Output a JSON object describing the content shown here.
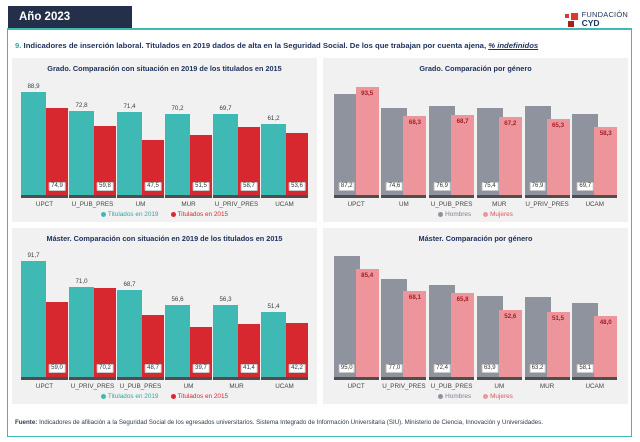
{
  "header": {
    "year_label": "Año 2023",
    "logo_line1": "FUNDACIÓN",
    "logo_line2": "CYD"
  },
  "page_title": {
    "number": "9.",
    "text": " Indicadores de inserción laboral. Titulados en 2019 dados de alta en la Seguridad Social. De los que trabajan por cuenta ajena, ",
    "emphasis": "% indefinidos"
  },
  "colors": {
    "accent_teal": "#3fb9b3",
    "bar_teal": "#3fb9b3",
    "bar_red": "#d7282f",
    "bar_gray": "#8e939d",
    "bar_pink": "#ee959c",
    "navy": "#21325b",
    "panel_bg": "#f1f1f2",
    "header_bg": "#243049"
  },
  "chart_data": [
    {
      "type": "bar",
      "variant": "cohort",
      "title": "Grado. Comparación con situación en 2019 de los titulados en 2015",
      "categories": [
        "UPCT",
        "U_PUB_PRES",
        "UM",
        "MUR",
        "U_PRIV_PRES",
        "UCAM"
      ],
      "ylim": [
        0,
        100
      ],
      "legend_position": "bottom",
      "series": [
        {
          "name": "Titulados en 2019",
          "color": "#3fb9b3",
          "legend_text_color": "#2fa9a3",
          "label_style": "above",
          "label_color": "#3f3f3f",
          "values": [
            88.9,
            72.8,
            71.4,
            70.2,
            69.7,
            61.2
          ],
          "labels": [
            "88,9",
            "72,8",
            "71,4",
            "70,2",
            "69,7",
            "61,2"
          ]
        },
        {
          "name": "Titulados en 2015",
          "color": "#d7282f",
          "legend_text_color": "#d7282f",
          "label_style": "box-bottom",
          "label_color": "#333333",
          "values": [
            74.9,
            59.8,
            47.5,
            51.5,
            58.7,
            53.6
          ],
          "labels": [
            "74,9",
            "59,8",
            "47,5",
            "51,5",
            "58,7",
            "53,6"
          ]
        }
      ]
    },
    {
      "type": "bar",
      "variant": "gender",
      "title": "Grado. Comparación por género",
      "categories": [
        "UPCT",
        "UM",
        "U_PUB_PRES",
        "MUR",
        "U_PRIV_PRES",
        "UCAM"
      ],
      "ylim": [
        0,
        100
      ],
      "legend_position": "bottom",
      "series": [
        {
          "name": "Hombres",
          "color": "#8e939d",
          "legend_text_color": "#7c828f",
          "label_style": "box-bottom",
          "label_color": "#333333",
          "values": [
            87.2,
            74.6,
            76.9,
            75.4,
            76.9,
            69.7
          ],
          "labels": [
            "87,2",
            "74,6",
            "76,9",
            "75,4",
            "76,9",
            "69,7"
          ]
        },
        {
          "name": "Mujeres",
          "color": "#ee959c",
          "legend_text_color": "#d8565e",
          "label_style": "top-inside",
          "label_color": "#9e2227",
          "values": [
            93.5,
            68.3,
            68.7,
            67.2,
            65.3,
            58.3
          ],
          "labels": [
            "93,5",
            "68,3",
            "68,7",
            "67,2",
            "65,3",
            "58,3"
          ]
        }
      ]
    },
    {
      "type": "bar",
      "variant": "cohort",
      "title": "Máster. Comparación con situación en 2019 de los titulados en 2015",
      "categories": [
        "UPCT",
        "U_PRIV_PRES",
        "U_PUB_PRES",
        "UM",
        "MUR",
        "UCAM"
      ],
      "ylim": [
        0,
        100
      ],
      "legend_position": "bottom",
      "series": [
        {
          "name": "Titulados en 2019",
          "color": "#3fb9b3",
          "legend_text_color": "#2fa9a3",
          "label_style": "above",
          "label_color": "#3f3f3f",
          "values": [
            91.7,
            71.0,
            68.7,
            56.6,
            56.3,
            51.4
          ],
          "labels": [
            "91,7",
            "71,0",
            "68,7",
            "56,6",
            "56,3",
            "51,4"
          ]
        },
        {
          "name": "Titulados en 2015",
          "color": "#d7282f",
          "legend_text_color": "#d7282f",
          "label_style": "box-bottom",
          "label_color": "#333333",
          "values": [
            59.0,
            70.2,
            48.7,
            39.7,
            41.4,
            42.2
          ],
          "labels": [
            "59,0",
            "70,2",
            "48,7",
            "39,7",
            "41,4",
            "42,2"
          ]
        }
      ]
    },
    {
      "type": "bar",
      "variant": "gender",
      "title": "Máster. Comparación por género",
      "categories": [
        "UPCT",
        "U_PRIV_PRES",
        "U_PUB_PRES",
        "UM",
        "MUR",
        "UCAM"
      ],
      "ylim": [
        0,
        100
      ],
      "legend_position": "bottom",
      "series": [
        {
          "name": "Hombres",
          "color": "#8e939d",
          "legend_text_color": "#7c828f",
          "label_style": "box-bottom",
          "label_color": "#333333",
          "values": [
            95.0,
            77.0,
            72.4,
            63.9,
            63.2,
            58.1
          ],
          "labels": [
            "95,0",
            "77,0",
            "72,4",
            "63,9",
            "63,2",
            "58,1"
          ]
        },
        {
          "name": "Mujeres",
          "color": "#ee959c",
          "legend_text_color": "#d8565e",
          "label_style": "top-inside",
          "label_color": "#9e2227",
          "values": [
            85.4,
            68.1,
            65.8,
            52.6,
            51.5,
            48.0
          ],
          "labels": [
            "85,4",
            "68,1",
            "65,8",
            "52,6",
            "51,5",
            "48,0"
          ]
        }
      ]
    }
  ],
  "footer": {
    "label": "Fuente:",
    "text": " Indicadores de afiliación a la Seguridad Social de los egresados universitarios. Sistema Integrado de Información Universitaria (SIU). Ministerio de Ciencia, Innovación y Universidades."
  }
}
